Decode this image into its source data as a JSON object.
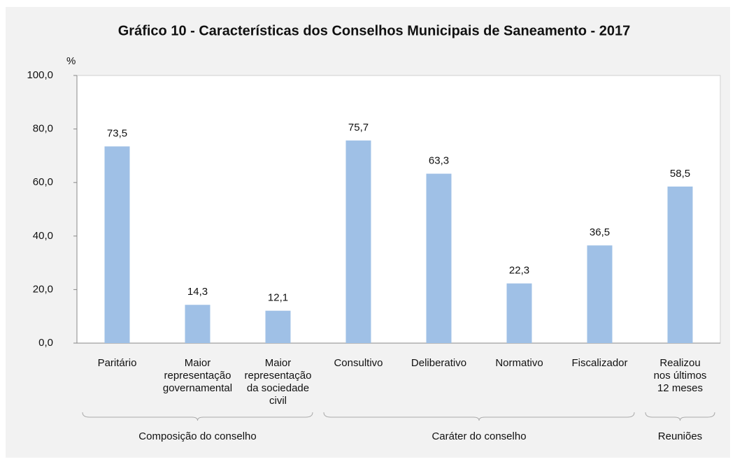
{
  "chart_data": {
    "type": "bar",
    "title": "Gráfico 10 - Características dos Conselhos Municipais de Saneamento - 2017",
    "y_axis_label": "%",
    "categories": [
      "Paritário",
      "Maior\nrepresentação\ngovernamental",
      "Maior\nrepresentação\nda sociedade\ncivil",
      "Consultivo",
      "Deliberativo",
      "Normativo",
      "Fiscalizador",
      "Realizou\nnos últimos\n12 meses"
    ],
    "values": [
      73.5,
      14.3,
      12.1,
      75.7,
      63.3,
      22.3,
      36.5,
      58.5
    ],
    "value_labels": [
      "73,5",
      "14,3",
      "12,1",
      "75,7",
      "63,3",
      "22,3",
      "36,5",
      "58,5"
    ],
    "groups": [
      {
        "label": "Composição do conselho",
        "span": 3
      },
      {
        "label": "Caráter do conselho",
        "span": 4
      },
      {
        "label": "Reuniões",
        "span": 1
      }
    ],
    "color": "#9fc0e6",
    "ylim": [
      0,
      100
    ],
    "yticks": [
      {
        "value": 0,
        "label": "0,0"
      },
      {
        "value": 20,
        "label": "20,0"
      },
      {
        "value": 40,
        "label": "40,0"
      },
      {
        "value": 60,
        "label": "60,0"
      },
      {
        "value": 80,
        "label": "80,0"
      },
      {
        "value": 100,
        "label": "100,0"
      }
    ],
    "grid": false
  }
}
